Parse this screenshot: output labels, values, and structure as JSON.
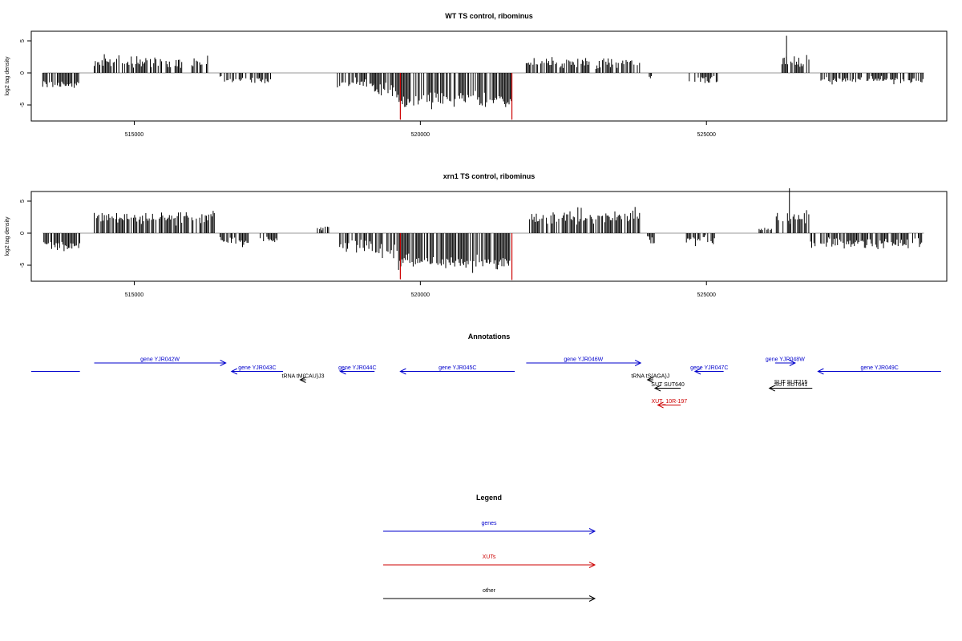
{
  "colors": {
    "background": "#ffffff",
    "bars": "#000000",
    "highlight_bars": "#cc0000",
    "zero_line": "#999999",
    "frame": "#000000",
    "genes": "#0000cc",
    "xuts": "#cc0000",
    "other": "#000000"
  },
  "chart_data": [
    {
      "type": "bar",
      "title": "WT TS control, ribominus",
      "ylabel": "log2 tag density",
      "xlim": [
        513200,
        529200
      ],
      "ylim": [
        -7.5,
        6.5
      ],
      "x_ticks": [
        515000,
        520000,
        525000
      ],
      "x_tick_labels": [
        "515000",
        "520000",
        "525000"
      ],
      "y_ticks": [
        -5,
        0,
        5
      ],
      "y_tick_labels": [
        "-5",
        "0",
        "5"
      ],
      "zero_line": true,
      "segments": [
        {
          "start": 513400,
          "end": 514050,
          "mean": -1.8,
          "sd": 0.6
        },
        {
          "start": 514300,
          "end": 516300,
          "mean": 1.7,
          "sd": 0.8
        },
        {
          "start": 516500,
          "end": 517400,
          "mean": -1.1,
          "sd": 0.6
        },
        {
          "start": 518550,
          "end": 519200,
          "mean": -1.6,
          "sd": 0.7
        },
        {
          "start": 519200,
          "end": 519550,
          "mean": -3.0,
          "sd": 1.0
        },
        {
          "start": 519550,
          "end": 521600,
          "mean": -4.2,
          "sd": 1.0
        },
        {
          "start": 521850,
          "end": 523850,
          "mean": 1.6,
          "sd": 0.8
        },
        {
          "start": 524000,
          "end": 524050,
          "mean": -0.6,
          "sd": 0.3
        },
        {
          "start": 524700,
          "end": 525200,
          "mean": -1.0,
          "sd": 0.5
        },
        {
          "start": 526300,
          "end": 526800,
          "mean": 1.8,
          "sd": 0.9
        },
        {
          "start": 527000,
          "end": 528800,
          "mean": -1.1,
          "sd": 0.5
        }
      ],
      "peaks": [
        {
          "x": 526400,
          "y": 5.8
        }
      ],
      "highlights": [
        {
          "x": 519650,
          "y": -7.3
        },
        {
          "x": 521600,
          "y": -7.3
        }
      ]
    },
    {
      "type": "bar",
      "title": "xrn1 TS control, ribominus",
      "ylabel": "log2 tag density",
      "xlim": [
        513200,
        529200
      ],
      "ylim": [
        -7.5,
        6.5
      ],
      "x_ticks": [
        515000,
        520000,
        525000
      ],
      "x_tick_labels": [
        "515000",
        "520000",
        "525000"
      ],
      "y_ticks": [
        -5,
        0,
        5
      ],
      "y_tick_labels": [
        "-5",
        "0",
        "5"
      ],
      "zero_line": true,
      "segments": [
        {
          "start": 513400,
          "end": 514050,
          "mean": -2.0,
          "sd": 0.7
        },
        {
          "start": 514300,
          "end": 516400,
          "mean": 2.4,
          "sd": 0.9
        },
        {
          "start": 516500,
          "end": 517000,
          "mean": -1.3,
          "sd": 0.6
        },
        {
          "start": 517200,
          "end": 517500,
          "mean": -1.0,
          "sd": 0.5
        },
        {
          "start": 518200,
          "end": 518400,
          "mean": 0.8,
          "sd": 0.3
        },
        {
          "start": 518550,
          "end": 519200,
          "mean": -2.0,
          "sd": 0.8
        },
        {
          "start": 519200,
          "end": 519600,
          "mean": -3.2,
          "sd": 1.0
        },
        {
          "start": 519600,
          "end": 521650,
          "mean": -4.5,
          "sd": 1.1
        },
        {
          "start": 521850,
          "end": 523850,
          "mean": 2.5,
          "sd": 1.0
        },
        {
          "start": 523950,
          "end": 524100,
          "mean": -1.2,
          "sd": 0.8
        },
        {
          "start": 524650,
          "end": 525150,
          "mean": -1.0,
          "sd": 0.8
        },
        {
          "start": 525900,
          "end": 526150,
          "mean": 0.6,
          "sd": 0.3
        },
        {
          "start": 526200,
          "end": 526800,
          "mean": 2.5,
          "sd": 1.0
        },
        {
          "start": 526800,
          "end": 528800,
          "mean": -1.6,
          "sd": 0.8
        }
      ],
      "peaks": [
        {
          "x": 526450,
          "y": 7.0
        }
      ],
      "highlights": [
        {
          "x": 519650,
          "y": -7.2
        },
        {
          "x": 521600,
          "y": -7.3
        }
      ]
    }
  ],
  "annotations": {
    "title": "Annotations",
    "features": [
      {
        "label": "",
        "category": "gene",
        "start": 513200,
        "end": 514050,
        "dir": 0,
        "row": 1
      },
      {
        "label": "gene YJR042W",
        "category": "gene",
        "start": 514300,
        "end": 516600,
        "dir": 1,
        "row": 0
      },
      {
        "label": "gene YJR043C",
        "category": "gene",
        "start": 516700,
        "end": 517600,
        "dir": -1,
        "row": 1
      },
      {
        "label": "tRNA tM(CAU)J3",
        "category": "other",
        "start": 517900,
        "end": 518000,
        "dir": -1,
        "row": 2
      },
      {
        "label": "gene YJR044C",
        "category": "gene",
        "start": 518600,
        "end": 519200,
        "dir": -1,
        "row": 1
      },
      {
        "label": "gene YJR045C",
        "category": "gene",
        "start": 519650,
        "end": 521650,
        "dir": -1,
        "row": 1
      },
      {
        "label": "gene YJR046W",
        "category": "gene",
        "start": 521850,
        "end": 523850,
        "dir": 1,
        "row": 0
      },
      {
        "label": "tRNA tS(AGA)J",
        "category": "other",
        "start": 523970,
        "end": 524070,
        "dir": -1,
        "row": 2
      },
      {
        "label": "SUT SUT640",
        "category": "other",
        "start": 524100,
        "end": 524550,
        "dir": -1,
        "row": 3
      },
      {
        "label": "XUT_10R-197",
        "category": "xut",
        "start": 524150,
        "end": 524550,
        "dir": -1,
        "row": 5
      },
      {
        "label": "gene YJR047C",
        "category": "gene",
        "start": 524800,
        "end": 525300,
        "dir": -1,
        "row": 1
      },
      {
        "label": "gene YJR048W",
        "category": "gene",
        "start": 526200,
        "end": 526550,
        "dir": 1,
        "row": 0
      },
      {
        "label": "SUT SUT215",
        "category": "other",
        "start": 526100,
        "end": 526850,
        "dir": 0,
        "row": 2.7
      },
      {
        "label": "SUT SUT641",
        "category": "other",
        "start": 526100,
        "end": 526850,
        "dir": -1,
        "row": 3
      },
      {
        "label": "gene YJR049C",
        "category": "gene",
        "start": 526950,
        "end": 529100,
        "dir": -1,
        "row": 1
      }
    ]
  },
  "legend": {
    "title": "Legend",
    "items": [
      {
        "label": "genes",
        "category": "gene"
      },
      {
        "label": "XUTs",
        "category": "xut"
      },
      {
        "label": "other",
        "category": "other"
      }
    ]
  }
}
